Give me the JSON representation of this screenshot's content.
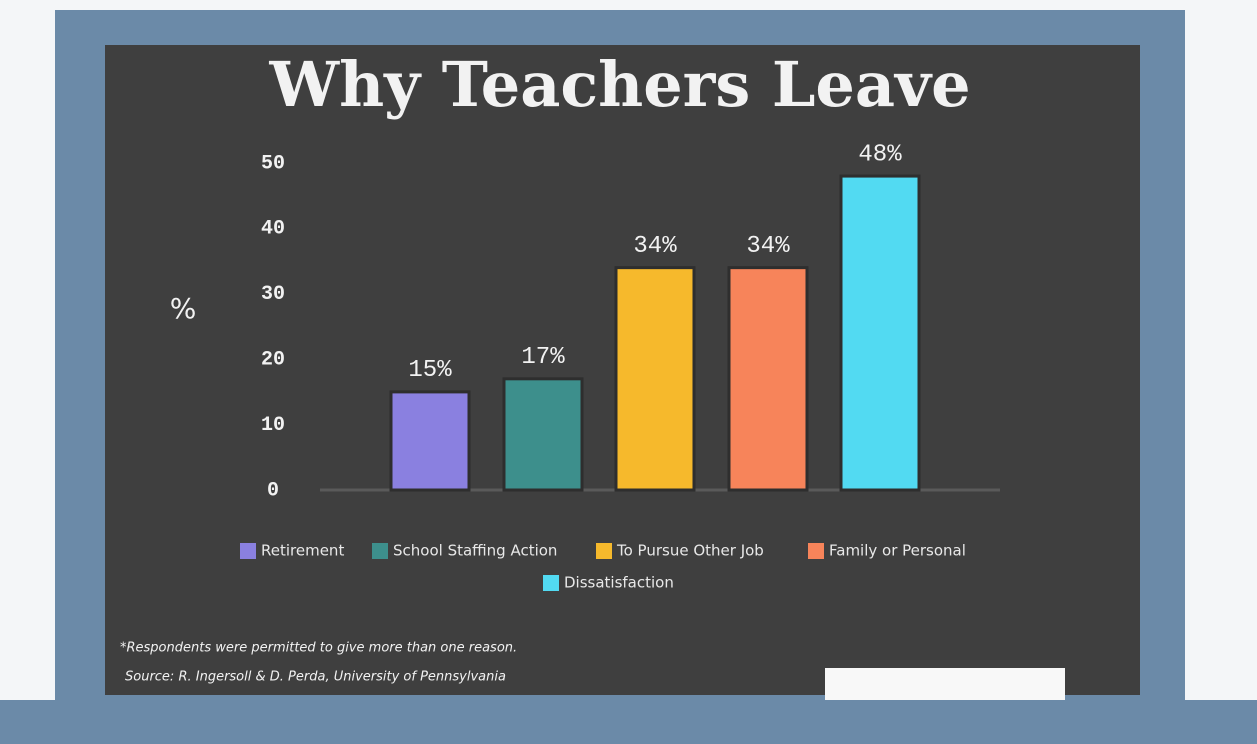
{
  "chart_data": {
    "type": "bar",
    "title": "Why Teachers Leave",
    "y_label": "%",
    "categories": [
      "Retirement",
      "School Staffing Action",
      "To Pursue Other Job",
      "Family or Personal",
      "Dissatisfaction"
    ],
    "values": [
      15,
      17,
      34,
      34,
      48
    ],
    "value_labels": [
      "15%",
      "17%",
      "34%",
      "34%",
      "48%"
    ],
    "colors": [
      "#8a80e0",
      "#3d8f8c",
      "#f6b92c",
      "#f7845a",
      "#52daf2"
    ],
    "ylim": [
      0,
      50
    ],
    "yticks": [
      0,
      10,
      20,
      30,
      40,
      50
    ],
    "grid": false,
    "legend": "bottom",
    "notes": [
      "*Respondents were permitted to give more than one reason.",
      "Source: R. Ingersoll & D. Perda, University of Pennsylvania"
    ]
  }
}
